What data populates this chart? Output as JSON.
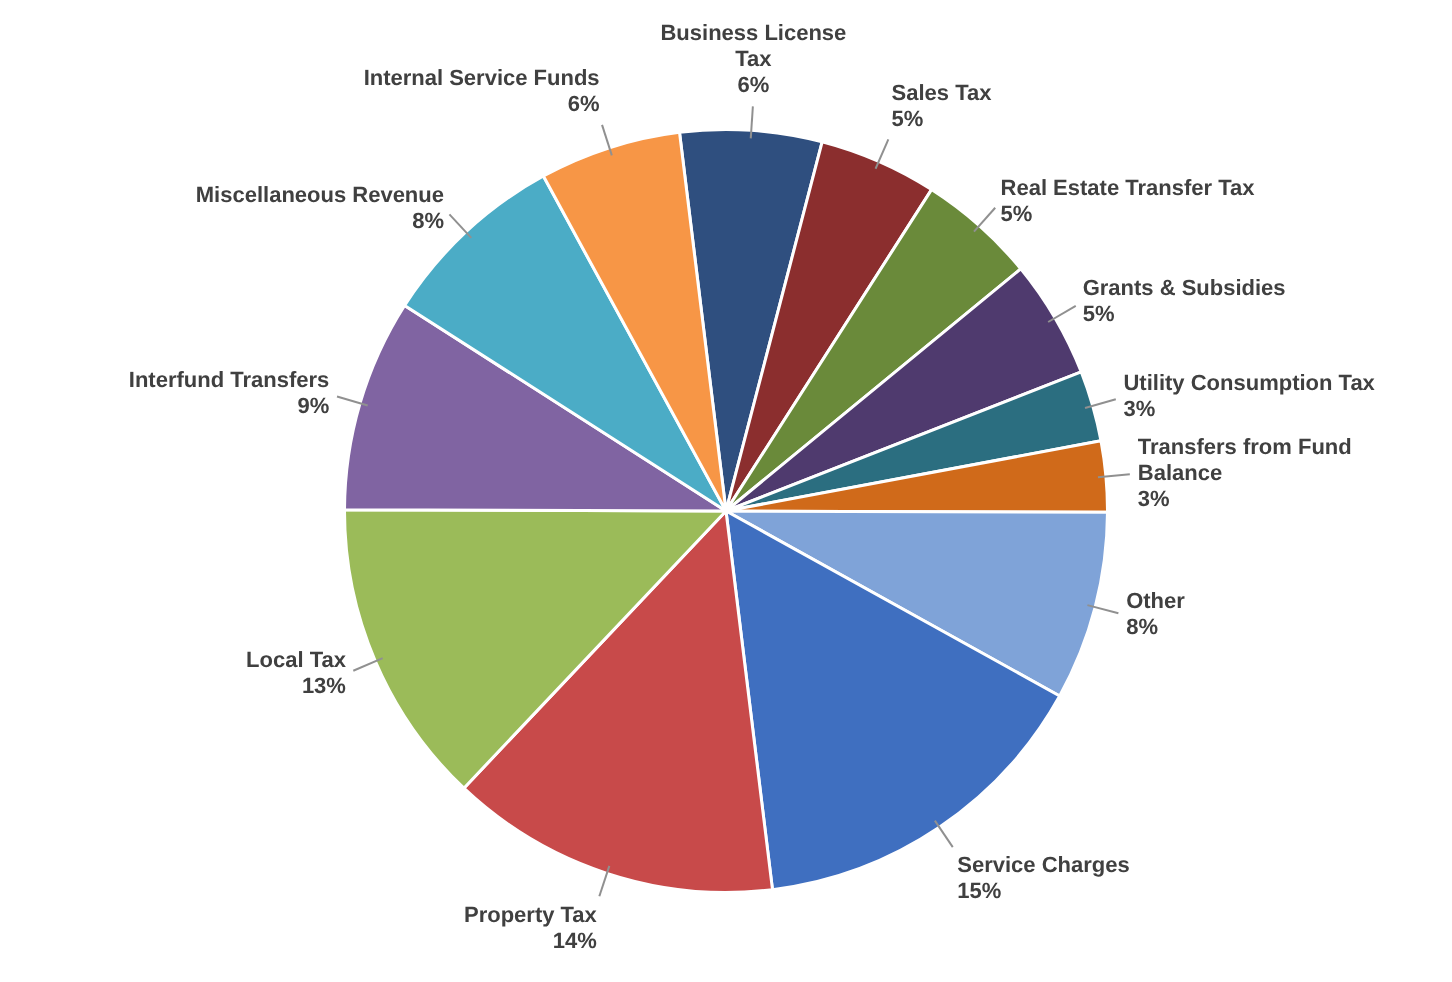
{
  "chart_data": {
    "type": "pie",
    "legend": false,
    "data_labels": true,
    "categories": [
      "Business License Tax",
      "Sales Tax",
      "Real Estate Transfer Tax",
      "Grants & Subsidies",
      "Utility Consumption Tax",
      "Transfers from Fund Balance",
      "Other",
      "Service Charges",
      "Property Tax",
      "Local Tax",
      "Interfund Transfers",
      "Miscellaneous Revenue",
      "Internal Service Funds"
    ],
    "values": [
      6,
      5,
      5,
      5,
      3,
      3,
      8,
      15,
      14,
      13,
      9,
      8,
      6
    ],
    "value_labels": [
      "6%",
      "5%",
      "5%",
      "5%",
      "3%",
      "3%",
      "8%",
      "15%",
      "14%",
      "13%",
      "9%",
      "8%",
      "6%"
    ],
    "colors": [
      "#2f4f7f",
      "#8b2e2e",
      "#6a8a3a",
      "#4f3a6e",
      "#2b6e80",
      "#d06a1a",
      "#7fa3d8",
      "#3f6fc0",
      "#c84a4a",
      "#9bbb59",
      "#8064a2",
      "#4bacc6",
      "#f79646"
    ]
  }
}
